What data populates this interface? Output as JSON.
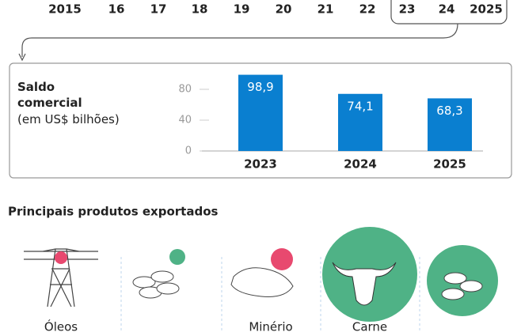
{
  "timeline": {
    "years": [
      "2015",
      "16",
      "17",
      "18",
      "19",
      "20",
      "21",
      "22",
      "23",
      "24",
      "2025"
    ]
  },
  "chart_data": {
    "type": "bar",
    "title": "Saldo comercial",
    "subtitle": "(em US$ bilhões)",
    "categories": [
      "2023",
      "2024",
      "2025"
    ],
    "values": [
      98.9,
      74.1,
      68.3
    ],
    "value_labels": [
      "98,9",
      "74,1",
      "68,3"
    ],
    "color": "#0a7fd0",
    "ylim": [
      0,
      100
    ],
    "yticks": [
      0,
      40,
      80
    ]
  },
  "products": {
    "title": "Principais produtos exportados",
    "items": [
      "Óleos",
      "Minério",
      "Carne"
    ]
  }
}
